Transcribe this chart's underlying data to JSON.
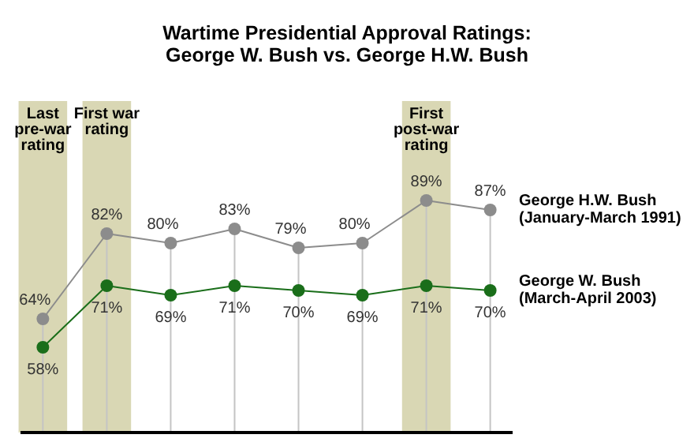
{
  "chart_data": {
    "type": "line",
    "title": "Wartime Presidential Approval Ratings: George W. Bush vs. George H.W. Bush",
    "categories": [
      null,
      null,
      null,
      null,
      null,
      null,
      null,
      null
    ],
    "series": [
      {
        "name": "George H.W. Bush (January-March 1991)",
        "color": "#8c8c8c",
        "values": [
          64,
          82,
          80,
          83,
          79,
          80,
          89,
          87
        ],
        "value_labels": [
          "64%",
          "82%",
          "80%",
          "83%",
          "79%",
          "80%",
          "89%",
          "87%"
        ]
      },
      {
        "name": "George W. Bush (March-April 2003)",
        "color": "#1a6e1a",
        "values": [
          58,
          71,
          69,
          71,
          70,
          69,
          71,
          70
        ],
        "value_labels": [
          "58%",
          "71%",
          "69%",
          "71%",
          "70%",
          "69%",
          "71%",
          "70%"
        ]
      }
    ],
    "annotations": [
      "Last pre-war rating",
      "First war rating",
      "First post-war rating"
    ],
    "grid": "x",
    "marker": "circle"
  }
}
